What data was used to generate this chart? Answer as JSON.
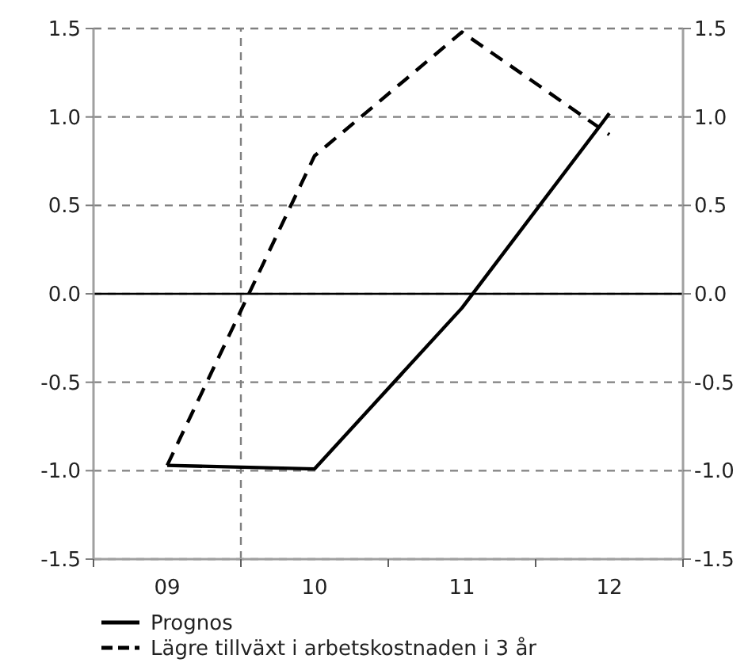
{
  "chart_data": {
    "type": "line",
    "x": [
      9,
      10,
      11,
      12
    ],
    "xlim": [
      8.5,
      12.5
    ],
    "xticks": [
      {
        "value": 8.5,
        "label": null
      },
      {
        "value": 9,
        "label": "09"
      },
      {
        "value": 9.5,
        "label": null
      },
      {
        "value": 10,
        "label": "10"
      },
      {
        "value": 10.5,
        "label": null
      },
      {
        "value": 11,
        "label": "11"
      },
      {
        "value": 11.5,
        "label": null
      },
      {
        "value": 12,
        "label": "12"
      },
      {
        "value": 12.5,
        "label": null
      }
    ],
    "ylim": [
      -1.5,
      1.5
    ],
    "yticks": [
      {
        "value": -1.5,
        "label": "-1.5"
      },
      {
        "value": -1,
        "label": "-1.0"
      },
      {
        "value": -0.5,
        "label": "-0.5"
      },
      {
        "value": 0,
        "label": "0.0"
      },
      {
        "value": 0.5,
        "label": "0.5"
      },
      {
        "value": 1,
        "label": "1.0"
      },
      {
        "value": 1.5,
        "label": "1.5"
      }
    ],
    "y2lim": [
      -1.5,
      1.5
    ],
    "y2ticks": [
      {
        "value": -1.5,
        "label": "-1.5"
      },
      {
        "value": -1,
        "label": "-1.0"
      },
      {
        "value": -0.5,
        "label": "-0.5"
      },
      {
        "value": 0,
        "label": "0.0"
      },
      {
        "value": 0.5,
        "label": "0.5"
      },
      {
        "value": 1,
        "label": "1.0"
      },
      {
        "value": 1.5,
        "label": "1.5"
      }
    ],
    "grid": "y",
    "legend": "bottom",
    "marker": "none",
    "ref_lines": [
      {
        "axis": "x",
        "value": 9.5,
        "color": "#808080",
        "line_style": "dashed"
      },
      {
        "axis": "y",
        "value": 0,
        "color": "#000000",
        "line_style": "solid"
      }
    ],
    "series": [
      {
        "name": "Prognos",
        "color": "#000000",
        "line_style": "solid",
        "values": [
          -0.97,
          -0.99,
          -0.08,
          1.02
        ]
      },
      {
        "name": "Lägre tillväxt i arbetskostnaden i 3 år",
        "color": "#000000",
        "line_style": "dashed",
        "values": [
          -0.97,
          0.78,
          1.48,
          0.9
        ]
      }
    ]
  }
}
